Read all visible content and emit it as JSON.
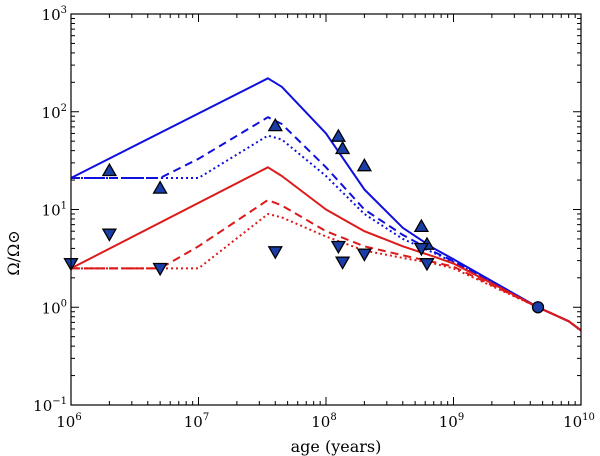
{
  "chart_data": {
    "type": "line",
    "xscale": "log",
    "yscale": "log",
    "xlim": [
      1000000,
      10000000000
    ],
    "ylim": [
      0.1,
      1000
    ],
    "xlabel": "age (years)",
    "ylabel": "Ω/Ω⊙",
    "x_tick_labels": [
      {
        "value": 1000000,
        "base": "10",
        "exp": "6"
      },
      {
        "value": 10000000,
        "base": "10",
        "exp": "7"
      },
      {
        "value": 100000000,
        "base": "10",
        "exp": "8"
      },
      {
        "value": 1000000000,
        "base": "10",
        "exp": "9"
      },
      {
        "value": 10000000000,
        "base": "10",
        "exp": "10"
      }
    ],
    "y_tick_labels": [
      {
        "value": 0.1,
        "base": "10",
        "exp": "−1"
      },
      {
        "value": 1,
        "base": "10",
        "exp": "0"
      },
      {
        "value": 10,
        "base": "10",
        "exp": "1"
      },
      {
        "value": 100,
        "base": "10",
        "exp": "2"
      },
      {
        "value": 1000,
        "base": "10",
        "exp": "3"
      }
    ],
    "colors": {
      "fast": "#1010dd",
      "slow": "#dd1a1a",
      "marker_fill": "#1a3ea8"
    },
    "series": [
      {
        "name": "fast-solid",
        "color": "fast",
        "style": "solid",
        "x": [
          1000000,
          35000000,
          45000000,
          100000000,
          200000000,
          400000000,
          700000000,
          1000000000,
          4600000000,
          8000000000,
          10000000000
        ],
        "y": [
          21,
          220,
          180,
          60,
          16,
          6.5,
          4,
          3.1,
          1.0,
          0.72,
          0.58
        ]
      },
      {
        "name": "fast-dashed",
        "color": "fast",
        "style": "dashed",
        "x": [
          1000000,
          5000000,
          10000000,
          35000000,
          45000000,
          100000000,
          200000000,
          400000000,
          700000000,
          1000000000,
          4600000000,
          8000000000,
          10000000000
        ],
        "y": [
          21,
          21,
          33,
          88,
          75,
          27,
          10,
          5.5,
          3.7,
          2.95,
          1.0,
          0.72,
          0.58
        ]
      },
      {
        "name": "fast-dotted",
        "color": "fast",
        "style": "dotted",
        "x": [
          1000000,
          10000000,
          35000000,
          45000000,
          100000000,
          200000000,
          400000000,
          700000000,
          1000000000,
          4600000000,
          8000000000,
          10000000000
        ],
        "y": [
          21,
          21,
          57,
          52,
          22,
          9,
          5,
          3.6,
          2.9,
          1.0,
          0.72,
          0.58
        ]
      },
      {
        "name": "fast-dashdot",
        "color": "fast",
        "style": "dashdot",
        "x": [
          1000000,
          5000000
        ],
        "y": [
          21,
          21
        ]
      },
      {
        "name": "slow-solid",
        "color": "slow",
        "style": "solid",
        "x": [
          1000000,
          35000000,
          45000000,
          100000000,
          200000000,
          400000000,
          700000000,
          1000000000,
          4600000000,
          8000000000,
          10000000000
        ],
        "y": [
          2.5,
          27,
          22,
          10,
          6,
          4.2,
          3.3,
          2.8,
          1.0,
          0.72,
          0.58
        ]
      },
      {
        "name": "slow-dashed",
        "color": "slow",
        "style": "dashed",
        "x": [
          1000000,
          5000000,
          10000000,
          35000000,
          45000000,
          100000000,
          200000000,
          400000000,
          700000000,
          1000000000,
          4600000000,
          8000000000,
          10000000000
        ],
        "y": [
          2.5,
          2.5,
          4.2,
          12.5,
          11,
          6,
          4.2,
          3.4,
          2.9,
          2.6,
          1.0,
          0.72,
          0.58
        ]
      },
      {
        "name": "slow-dotted",
        "color": "slow",
        "style": "dotted",
        "x": [
          1000000,
          10000000,
          35000000,
          45000000,
          100000000,
          200000000,
          400000000,
          700000000,
          1000000000,
          4600000000,
          8000000000,
          10000000000
        ],
        "y": [
          2.5,
          2.5,
          9,
          8.3,
          5.3,
          3.8,
          3.2,
          2.8,
          2.5,
          1.0,
          0.72,
          0.58
        ]
      },
      {
        "name": "slow-dashdot",
        "color": "slow",
        "style": "dashdot",
        "x": [
          1000000,
          5000000
        ],
        "y": [
          2.5,
          2.5
        ]
      }
    ],
    "markers": [
      {
        "shape": "up-triangle",
        "x": 2000000,
        "y": 25
      },
      {
        "shape": "up-triangle",
        "x": 5000000,
        "y": 16.5
      },
      {
        "shape": "up-triangle",
        "x": 40000000,
        "y": 72
      },
      {
        "shape": "up-triangle",
        "x": 125000000,
        "y": 56
      },
      {
        "shape": "up-triangle",
        "x": 135000000,
        "y": 42
      },
      {
        "shape": "up-triangle",
        "x": 200000000,
        "y": 28
      },
      {
        "shape": "up-triangle",
        "x": 560000000,
        "y": 6.7
      },
      {
        "shape": "up-triangle",
        "x": 620000000,
        "y": 4.4
      },
      {
        "shape": "down-triangle",
        "x": 1000000,
        "y": 2.8
      },
      {
        "shape": "down-triangle",
        "x": 2000000,
        "y": 5.6
      },
      {
        "shape": "down-triangle",
        "x": 5000000,
        "y": 2.5
      },
      {
        "shape": "down-triangle",
        "x": 40000000,
        "y": 3.7
      },
      {
        "shape": "down-triangle",
        "x": 125000000,
        "y": 4.2
      },
      {
        "shape": "down-triangle",
        "x": 135000000,
        "y": 2.9
      },
      {
        "shape": "down-triangle",
        "x": 200000000,
        "y": 3.5
      },
      {
        "shape": "down-triangle",
        "x": 560000000,
        "y": 4.0
      },
      {
        "shape": "down-triangle",
        "x": 620000000,
        "y": 2.8
      },
      {
        "shape": "circle",
        "x": 4600000000,
        "y": 1.0
      }
    ]
  }
}
